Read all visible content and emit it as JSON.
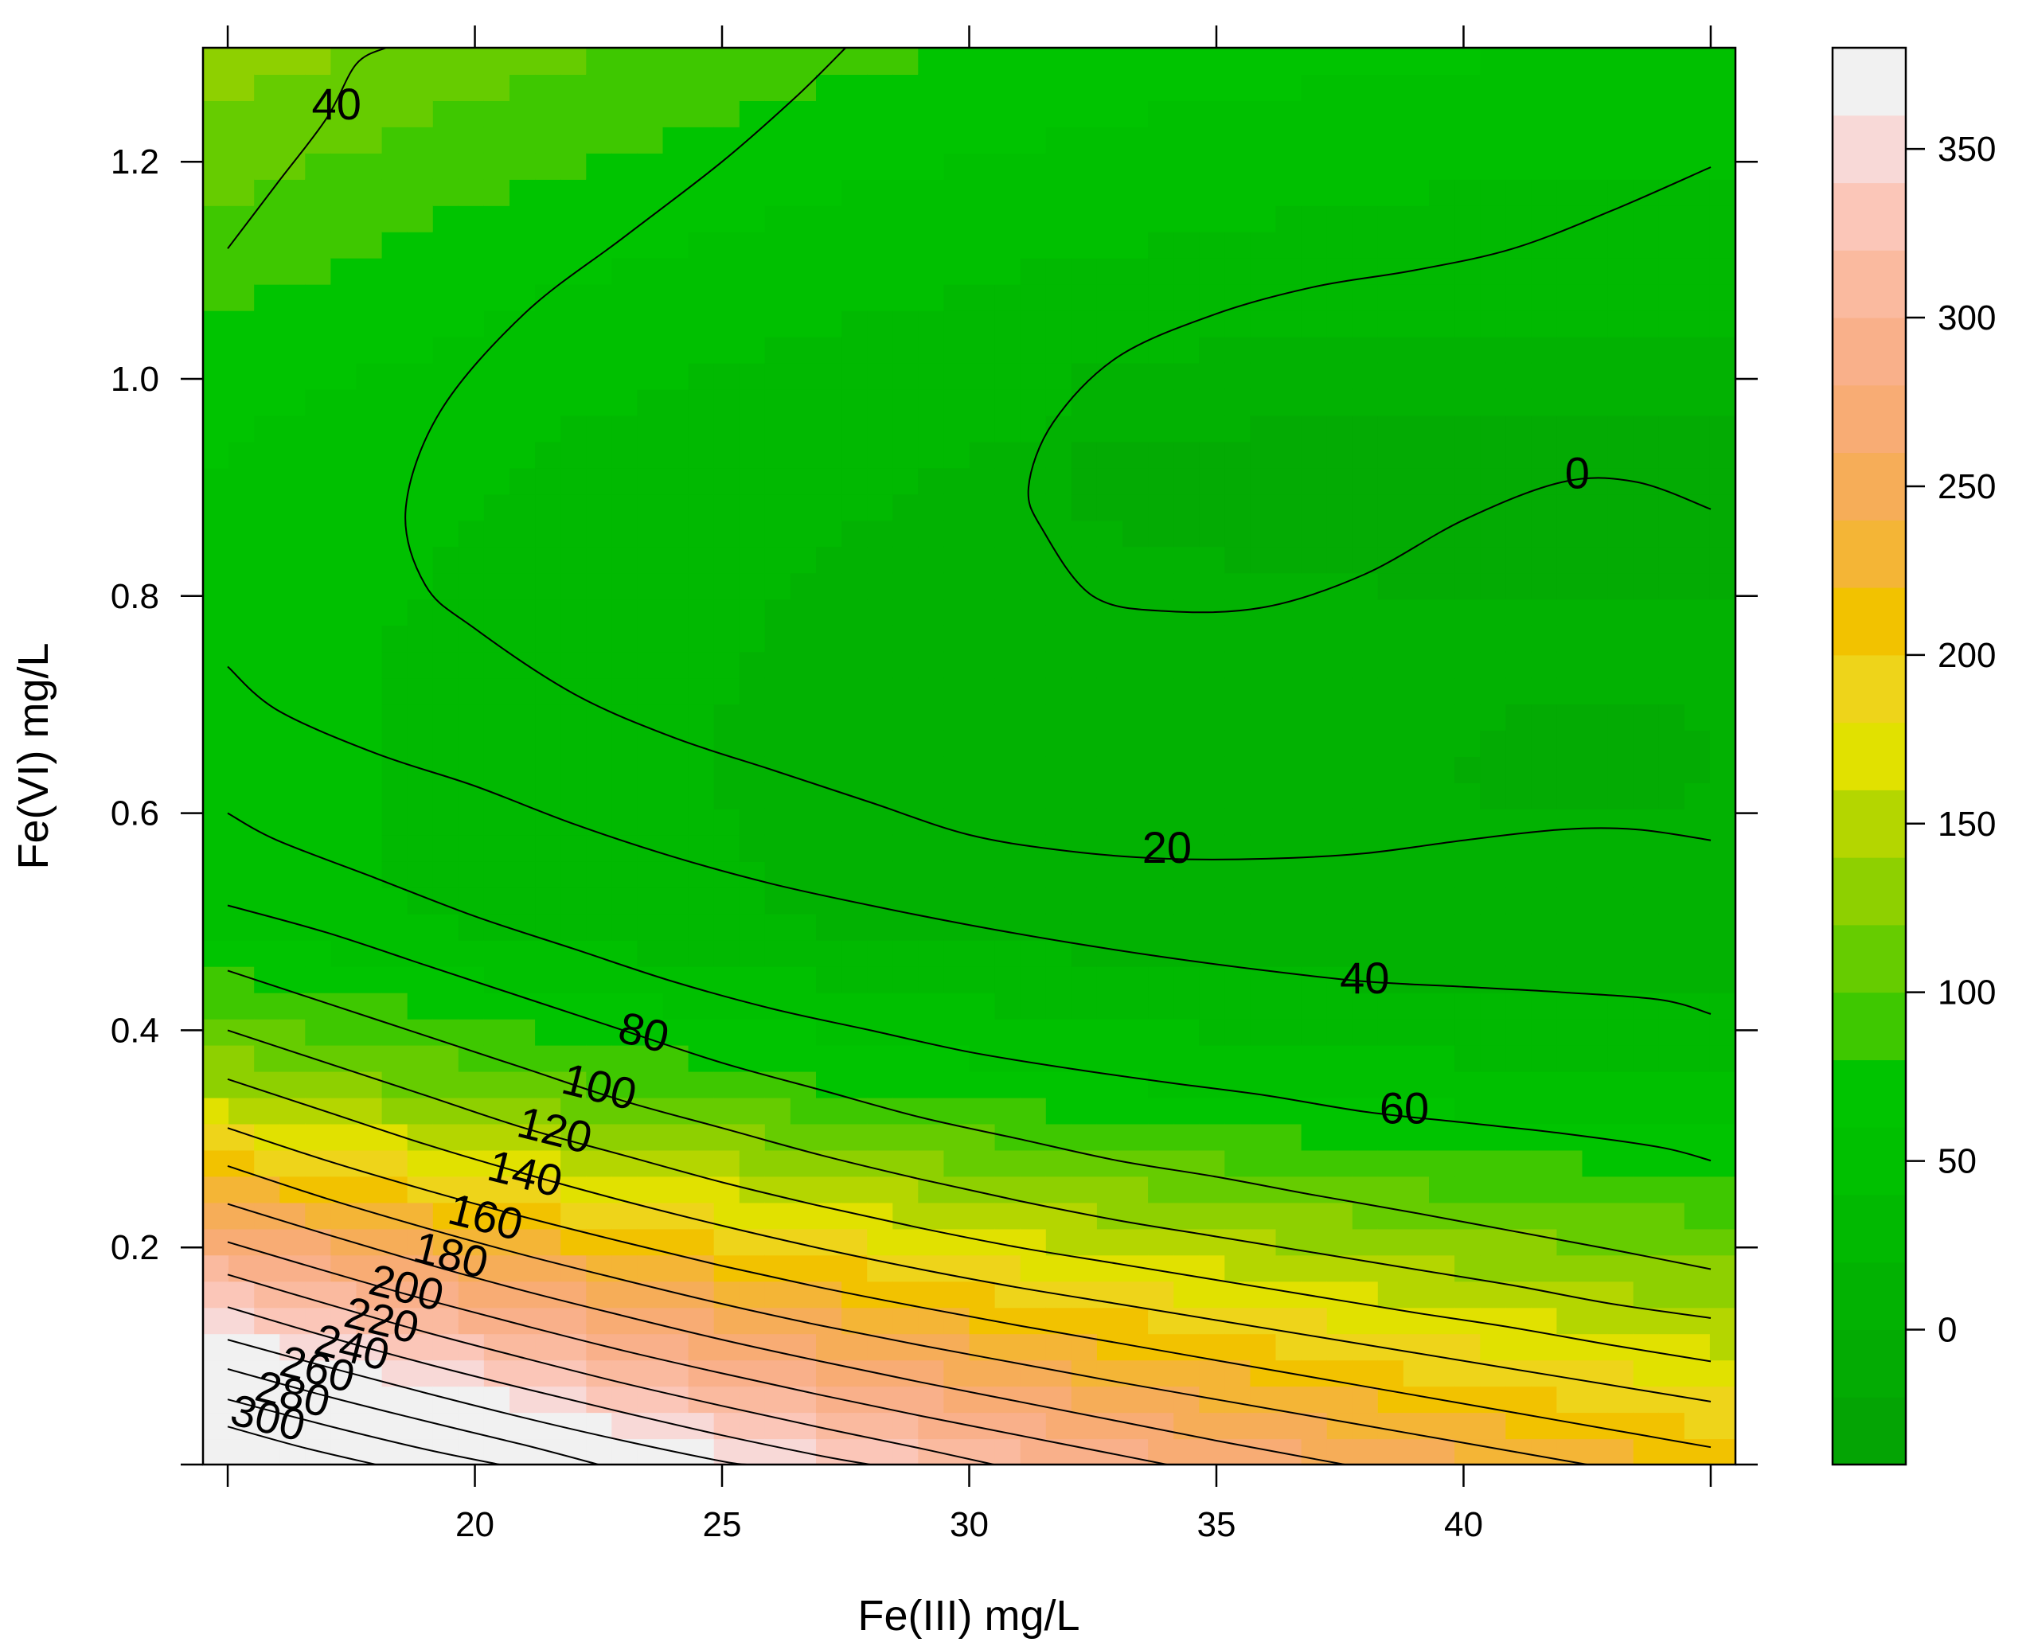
{
  "chart_data": {
    "type": "heatmap",
    "subtype": "filled-contour",
    "title": "",
    "xlabel": "Fe(III) mg/L",
    "ylabel": "Fe(VI) mg/L",
    "xlim": [
      14.5,
      45.5
    ],
    "ylim": [
      0.0,
      1.305
    ],
    "x_ticks": [
      20,
      25,
      30,
      35,
      40
    ],
    "y_ticks": [
      0.2,
      0.4,
      0.6,
      0.8,
      1.0,
      1.2
    ],
    "y_tick_labels": [
      "0.2",
      "0.4",
      "0.6",
      "0.8",
      "1.0",
      "1.2"
    ],
    "colorbar": {
      "range": [
        -40,
        380
      ],
      "ticks": [
        0,
        50,
        100,
        150,
        200,
        250,
        300,
        350
      ],
      "bands": [
        {
          "from": -40,
          "to": -20,
          "color": "#04a404"
        },
        {
          "from": -20,
          "to": 0,
          "color": "#03ab03"
        },
        {
          "from": 0,
          "to": 20,
          "color": "#02b202"
        },
        {
          "from": 20,
          "to": 40,
          "color": "#01b901"
        },
        {
          "from": 40,
          "to": 60,
          "color": "#00c000"
        },
        {
          "from": 60,
          "to": 80,
          "color": "#00c400"
        },
        {
          "from": 80,
          "to": 100,
          "color": "#3ec800"
        },
        {
          "from": 100,
          "to": 120,
          "color": "#66cc00"
        },
        {
          "from": 120,
          "to": 140,
          "color": "#8ed000"
        },
        {
          "from": 140,
          "to": 160,
          "color": "#b4d600"
        },
        {
          "from": 160,
          "to": 180,
          "color": "#e1e100"
        },
        {
          "from": 180,
          "to": 200,
          "color": "#eed41a"
        },
        {
          "from": 200,
          "to": 220,
          "color": "#f2c200"
        },
        {
          "from": 220,
          "to": 240,
          "color": "#f4b536"
        },
        {
          "from": 240,
          "to": 260,
          "color": "#f6ad58"
        },
        {
          "from": 260,
          "to": 280,
          "color": "#f8ac74"
        },
        {
          "from": 280,
          "to": 300,
          "color": "#f9b08a"
        },
        {
          "from": 300,
          "to": 320,
          "color": "#faba9f"
        },
        {
          "from": 320,
          "to": 340,
          "color": "#fbc6b8"
        },
        {
          "from": 340,
          "to": 360,
          "color": "#f8d9d7"
        },
        {
          "from": 360,
          "to": 380,
          "color": "#f1f1f1"
        }
      ]
    },
    "contours": [
      {
        "level": "0",
        "label_at": [
          42.3,
          0.91
        ],
        "points": [
          [
            45,
            0.88
          ],
          [
            43.5,
            0.905
          ],
          [
            42,
            0.905
          ],
          [
            40,
            0.87
          ],
          [
            38,
            0.82
          ],
          [
            36,
            0.79
          ],
          [
            34,
            0.786
          ],
          [
            32.5,
            0.8
          ],
          [
            31.5,
            0.86
          ],
          [
            31.2,
            0.9
          ],
          [
            31.7,
            0.96
          ],
          [
            33,
            1.02
          ],
          [
            35,
            1.06
          ],
          [
            37,
            1.085
          ],
          [
            39,
            1.1
          ],
          [
            41,
            1.12
          ],
          [
            43,
            1.155
          ],
          [
            45,
            1.195
          ]
        ]
      },
      {
        "level": "20",
        "label_at": [
          34.0,
          0.565
        ],
        "points": [
          [
            45,
            0.575
          ],
          [
            43.5,
            0.585
          ],
          [
            42,
            0.585
          ],
          [
            40,
            0.575
          ],
          [
            38,
            0.563
          ],
          [
            36,
            0.558
          ],
          [
            34,
            0.558
          ],
          [
            32,
            0.565
          ],
          [
            30,
            0.58
          ],
          [
            28,
            0.61
          ],
          [
            26,
            0.64
          ],
          [
            24,
            0.67
          ],
          [
            22,
            0.71
          ],
          [
            20,
            0.77
          ],
          [
            19,
            0.81
          ],
          [
            18.6,
            0.88
          ],
          [
            19.3,
            0.97
          ],
          [
            21,
            1.06
          ],
          [
            23,
            1.13
          ],
          [
            25,
            1.2
          ],
          [
            26.5,
            1.26
          ],
          [
            27.5,
            1.305
          ]
        ]
      },
      {
        "level": "40",
        "label_at": [
          17.2,
          1.25
        ],
        "points": [
          [
            15,
            1.12
          ],
          [
            16,
            1.18
          ],
          [
            17,
            1.24
          ],
          [
            17.6,
            1.29
          ],
          [
            18.2,
            1.305
          ]
        ]
      },
      {
        "level": "40",
        "label_at": [
          38.0,
          0.445
        ],
        "points": [
          [
            15,
            0.735
          ],
          [
            16,
            0.695
          ],
          [
            18,
            0.655
          ],
          [
            20,
            0.625
          ],
          [
            22,
            0.59
          ],
          [
            24,
            0.56
          ],
          [
            26,
            0.535
          ],
          [
            28,
            0.515
          ],
          [
            30,
            0.497
          ],
          [
            32,
            0.481
          ],
          [
            34,
            0.467
          ],
          [
            36,
            0.455
          ],
          [
            38,
            0.445
          ],
          [
            40,
            0.44
          ],
          [
            42,
            0.435
          ],
          [
            44,
            0.428
          ],
          [
            45,
            0.415
          ]
        ]
      },
      {
        "level": "60",
        "label_at": [
          38.8,
          0.325
        ],
        "points": [
          [
            15,
            0.6
          ],
          [
            16,
            0.575
          ],
          [
            18,
            0.54
          ],
          [
            20,
            0.505
          ],
          [
            22,
            0.475
          ],
          [
            24,
            0.445
          ],
          [
            26,
            0.42
          ],
          [
            28,
            0.4
          ],
          [
            30,
            0.38
          ],
          [
            32,
            0.365
          ],
          [
            34,
            0.352
          ],
          [
            36,
            0.34
          ],
          [
            38,
            0.325
          ],
          [
            40,
            0.315
          ],
          [
            42,
            0.305
          ],
          [
            44,
            0.292
          ],
          [
            45,
            0.28
          ]
        ]
      },
      {
        "level": "80",
        "label_at": [
          23.4,
          0.395
        ],
        "points": [
          [
            15,
            0.515
          ],
          [
            17,
            0.49
          ],
          [
            19,
            0.46
          ],
          [
            21,
            0.43
          ],
          [
            23,
            0.4
          ],
          [
            25,
            0.37
          ],
          [
            27,
            0.345
          ],
          [
            29,
            0.32
          ],
          [
            31,
            0.3
          ],
          [
            33,
            0.28
          ],
          [
            35,
            0.265
          ],
          [
            37,
            0.248
          ],
          [
            39,
            0.232
          ],
          [
            41,
            0.215
          ],
          [
            43,
            0.198
          ],
          [
            45,
            0.18
          ]
        ]
      },
      {
        "level": "100",
        "label_at": [
          22.5,
          0.345
        ],
        "points": [
          [
            15,
            0.455
          ],
          [
            17,
            0.425
          ],
          [
            19,
            0.395
          ],
          [
            21,
            0.365
          ],
          [
            23,
            0.335
          ],
          [
            25,
            0.31
          ],
          [
            27,
            0.285
          ],
          [
            29,
            0.263
          ],
          [
            31,
            0.243
          ],
          [
            33,
            0.225
          ],
          [
            35,
            0.21
          ],
          [
            37,
            0.195
          ],
          [
            39,
            0.18
          ],
          [
            41,
            0.165
          ],
          [
            43,
            0.148
          ],
          [
            45,
            0.135
          ]
        ]
      },
      {
        "level": "120",
        "label_at": [
          21.6,
          0.305
        ],
        "points": [
          [
            15,
            0.4
          ],
          [
            17,
            0.37
          ],
          [
            19,
            0.34
          ],
          [
            21,
            0.31
          ],
          [
            23,
            0.285
          ],
          [
            25,
            0.26
          ],
          [
            27,
            0.238
          ],
          [
            29,
            0.218
          ],
          [
            31,
            0.2
          ],
          [
            33,
            0.185
          ],
          [
            35,
            0.17
          ],
          [
            37,
            0.155
          ],
          [
            39,
            0.14
          ],
          [
            41,
            0.126
          ],
          [
            43,
            0.11
          ],
          [
            45,
            0.095
          ]
        ]
      },
      {
        "level": "140",
        "label_at": [
          21.0,
          0.265
        ],
        "points": [
          [
            15,
            0.355
          ],
          [
            17,
            0.325
          ],
          [
            19,
            0.295
          ],
          [
            21,
            0.268
          ],
          [
            23,
            0.243
          ],
          [
            25,
            0.22
          ],
          [
            27,
            0.199
          ],
          [
            29,
            0.18
          ],
          [
            31,
            0.163
          ],
          [
            33,
            0.148
          ],
          [
            35,
            0.133
          ],
          [
            37,
            0.118
          ],
          [
            39,
            0.103
          ],
          [
            41,
            0.088
          ],
          [
            43,
            0.073
          ],
          [
            45,
            0.058
          ]
        ]
      },
      {
        "level": "160",
        "label_at": [
          20.2,
          0.225
        ],
        "points": [
          [
            15,
            0.31
          ],
          [
            17,
            0.28
          ],
          [
            19,
            0.253
          ],
          [
            21,
            0.228
          ],
          [
            23,
            0.205
          ],
          [
            25,
            0.183
          ],
          [
            27,
            0.163
          ],
          [
            29,
            0.145
          ],
          [
            31,
            0.128
          ],
          [
            33,
            0.112
          ],
          [
            35,
            0.096
          ],
          [
            37,
            0.08
          ],
          [
            39,
            0.064
          ],
          [
            41,
            0.048
          ],
          [
            43,
            0.032
          ],
          [
            44,
            0.024
          ],
          [
            45,
            0.016
          ]
        ]
      },
      {
        "level": "180",
        "label_at": [
          19.5,
          0.19
        ],
        "points": [
          [
            15,
            0.275
          ],
          [
            17,
            0.245
          ],
          [
            19,
            0.218
          ],
          [
            21,
            0.193
          ],
          [
            23,
            0.17
          ],
          [
            25,
            0.148
          ],
          [
            27,
            0.128
          ],
          [
            29,
            0.11
          ],
          [
            31,
            0.093
          ],
          [
            33,
            0.076
          ],
          [
            35,
            0.06
          ],
          [
            37,
            0.044
          ],
          [
            39,
            0.028
          ],
          [
            41,
            0.012
          ],
          [
            42.5,
            0.0
          ]
        ]
      },
      {
        "level": "200",
        "label_at": [
          18.6,
          0.16
        ],
        "points": [
          [
            15,
            0.24
          ],
          [
            17,
            0.212
          ],
          [
            19,
            0.185
          ],
          [
            21,
            0.16
          ],
          [
            23,
            0.137
          ],
          [
            25,
            0.115
          ],
          [
            27,
            0.095
          ],
          [
            29,
            0.076
          ],
          [
            31,
            0.058
          ],
          [
            33,
            0.04
          ],
          [
            35,
            0.022
          ],
          [
            37,
            0.005
          ],
          [
            37.6,
            0.0
          ]
        ]
      },
      {
        "level": "220",
        "label_at": [
          18.1,
          0.13
        ],
        "points": [
          [
            15,
            0.205
          ],
          [
            17,
            0.178
          ],
          [
            19,
            0.152
          ],
          [
            21,
            0.128
          ],
          [
            23,
            0.105
          ],
          [
            25,
            0.084
          ],
          [
            27,
            0.064
          ],
          [
            29,
            0.045
          ],
          [
            31,
            0.027
          ],
          [
            33,
            0.009
          ],
          [
            34,
            0.0
          ]
        ]
      },
      {
        "level": "240",
        "label_at": [
          17.5,
          0.105
        ],
        "points": [
          [
            15,
            0.175
          ],
          [
            17,
            0.148
          ],
          [
            19,
            0.122
          ],
          [
            21,
            0.098
          ],
          [
            23,
            0.075
          ],
          [
            25,
            0.054
          ],
          [
            27,
            0.034
          ],
          [
            29,
            0.015
          ],
          [
            30.5,
            0.0
          ]
        ]
      },
      {
        "level": "260",
        "label_at": [
          16.8,
          0.085
        ],
        "points": [
          [
            15,
            0.145
          ],
          [
            17,
            0.118
          ],
          [
            19,
            0.093
          ],
          [
            21,
            0.07
          ],
          [
            23,
            0.048
          ],
          [
            25,
            0.027
          ],
          [
            27,
            0.008
          ],
          [
            28,
            0.0
          ]
        ]
      },
      {
        "level": "280",
        "label_at": [
          16.3,
          0.062
        ],
        "points": [
          [
            15,
            0.115
          ],
          [
            17,
            0.09
          ],
          [
            19,
            0.066
          ],
          [
            21,
            0.043
          ],
          [
            23,
            0.022
          ],
          [
            25,
            0.003
          ],
          [
            25.5,
            0.0
          ]
        ]
      },
      {
        "level": "300",
        "label_at": [
          15.8,
          0.04
        ],
        "points": [
          [
            15,
            0.088
          ],
          [
            17,
            0.063
          ],
          [
            19,
            0.04
          ],
          [
            21,
            0.018
          ],
          [
            22.5,
            0.0
          ]
        ]
      },
      {
        "level": "320",
        "label_at": null,
        "points": [
          [
            15,
            0.06
          ],
          [
            17,
            0.036
          ],
          [
            19,
            0.014
          ],
          [
            20.5,
            0.0
          ]
        ]
      },
      {
        "level": "340",
        "label_at": null,
        "points": [
          [
            15,
            0.035
          ],
          [
            16.5,
            0.016
          ],
          [
            18,
            0.0
          ]
        ]
      }
    ]
  }
}
